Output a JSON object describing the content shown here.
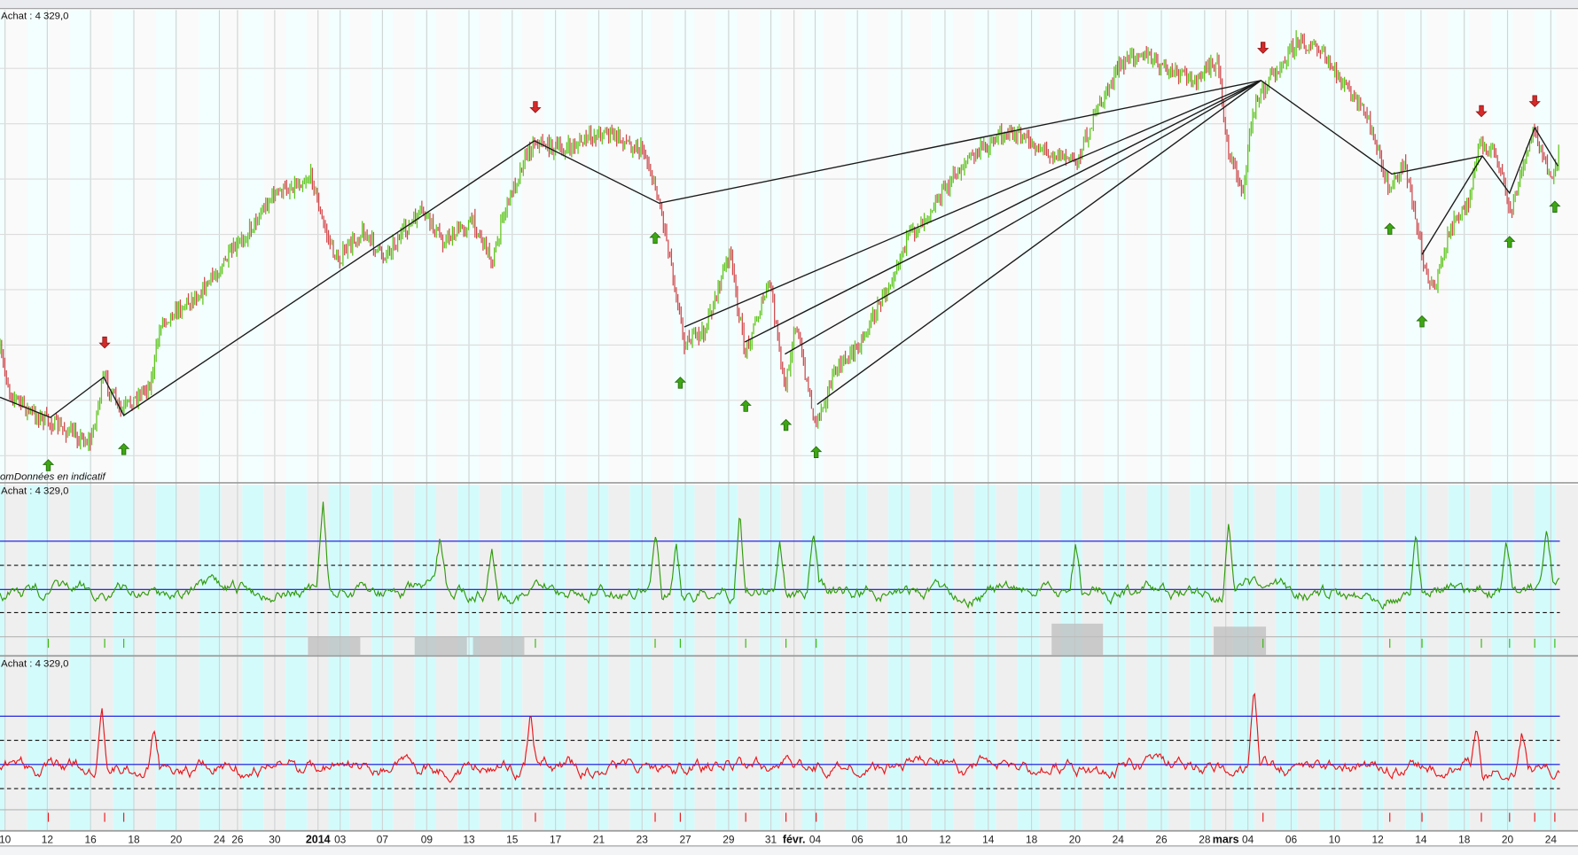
{
  "panels": {
    "price": {
      "header": "Achat : 4 329,0",
      "footnote_prefix": "om",
      "footnote": "Données en indicatif"
    },
    "oscillator_1": {
      "header": "Achat : 4 329,0"
    },
    "oscillator_2": {
      "header": "Achat : 4 329,0"
    }
  },
  "colors": {
    "candle_up": "#5cc41a",
    "candle_down": "#d0484c",
    "zigzag": "#1a1a1a",
    "arrow_up": "#3ea614",
    "arrow_down": "#d42a2a",
    "osc1_line": "#2f9a0a",
    "osc2_line": "#e8141a",
    "reference_line": "#1010e0",
    "dashed_line": "#111111",
    "band_cyan": "#d4fbfc",
    "band_gray": "#efefef"
  },
  "chart_data": {
    "type": "candlestick",
    "x_ticks": [
      {
        "label": "10"
      },
      {
        "label": "12"
      },
      {
        "label": "16"
      },
      {
        "label": "18"
      },
      {
        "label": "20"
      },
      {
        "label": "24"
      },
      {
        "label": "26"
      },
      {
        "label": "30"
      },
      {
        "label": "2014",
        "bold": true
      },
      {
        "label": "03"
      },
      {
        "label": "07"
      },
      {
        "label": "09"
      },
      {
        "label": "13"
      },
      {
        "label": "15"
      },
      {
        "label": "17"
      },
      {
        "label": "21"
      },
      {
        "label": "23"
      },
      {
        "label": "27"
      },
      {
        "label": "29"
      },
      {
        "label": "31"
      },
      {
        "label": "févr.",
        "bold": true
      },
      {
        "label": "04"
      },
      {
        "label": "06"
      },
      {
        "label": "10"
      },
      {
        "label": "12"
      },
      {
        "label": "14"
      },
      {
        "label": "18"
      },
      {
        "label": "20"
      },
      {
        "label": "24"
      },
      {
        "label": "26"
      },
      {
        "label": "28"
      },
      {
        "label": "mars",
        "bold": true
      },
      {
        "label": "04"
      },
      {
        "label": "06"
      },
      {
        "label": "10"
      },
      {
        "label": "12"
      },
      {
        "label": "14"
      },
      {
        "label": "18"
      },
      {
        "label": "20"
      },
      {
        "label": "24"
      }
    ],
    "last_price": "4 329,0",
    "grid": true,
    "signals": {
      "buy_arrows": 11,
      "sell_arrows": 5
    },
    "indicators": [
      {
        "panel": "oscillator_1",
        "color": "green",
        "reference_lines": 2,
        "dashed_lines": 2
      },
      {
        "panel": "oscillator_2",
        "color": "red",
        "reference_lines": 2,
        "dashed_lines": 2
      }
    ]
  }
}
